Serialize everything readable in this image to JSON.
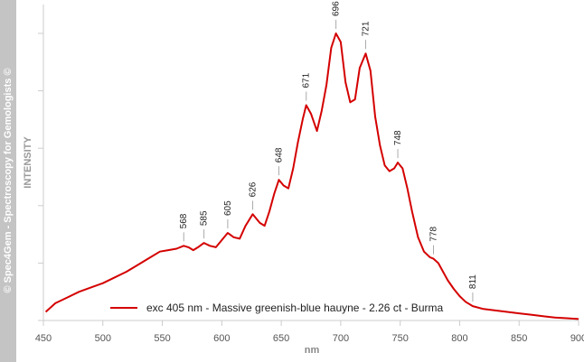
{
  "watermark": "© Spec4Gem - Spectroscopy for Gemologists ©",
  "chart_data": {
    "type": "line",
    "xlabel": "nm",
    "ylabel": "INTENSITY",
    "xlim": [
      450,
      900
    ],
    "ylim": [
      0,
      1.0
    ],
    "x_ticks": [
      450,
      500,
      550,
      600,
      650,
      700,
      750,
      800,
      850,
      900
    ],
    "y_tick_marks": [
      0,
      0.2,
      0.4,
      0.6,
      0.8,
      1.0
    ],
    "grid": false,
    "legend_position": "bottom",
    "colors": {
      "line": "#d40000",
      "axis": "#cccccc",
      "sidebar": "#c4c4c4"
    },
    "series": [
      {
        "name": "exc 405 nm - Massive greenish-blue hauyne - 2.26 ct - Burma",
        "x": [
          452,
          460,
          470,
          480,
          490,
          500,
          510,
          520,
          530,
          540,
          548,
          555,
          562,
          568,
          572,
          576,
          580,
          585,
          590,
          595,
          600,
          605,
          610,
          615,
          620,
          626,
          632,
          636,
          640,
          644,
          648,
          652,
          656,
          660,
          664,
          668,
          671,
          675,
          680,
          684,
          688,
          692,
          696,
          700,
          704,
          708,
          712,
          716,
          721,
          725,
          729,
          733,
          737,
          741,
          745,
          748,
          752,
          756,
          760,
          765,
          770,
          775,
          778,
          782,
          786,
          790,
          795,
          800,
          805,
          811,
          820,
          830,
          840,
          850,
          860,
          870,
          880,
          890,
          900
        ],
        "y": [
          0.03,
          0.06,
          0.08,
          0.1,
          0.115,
          0.13,
          0.15,
          0.17,
          0.195,
          0.22,
          0.24,
          0.245,
          0.25,
          0.26,
          0.255,
          0.245,
          0.255,
          0.27,
          0.26,
          0.255,
          0.28,
          0.305,
          0.29,
          0.285,
          0.33,
          0.37,
          0.34,
          0.33,
          0.38,
          0.44,
          0.49,
          0.47,
          0.46,
          0.53,
          0.62,
          0.7,
          0.75,
          0.72,
          0.66,
          0.73,
          0.82,
          0.95,
          1.0,
          0.97,
          0.83,
          0.76,
          0.77,
          0.88,
          0.93,
          0.87,
          0.71,
          0.61,
          0.54,
          0.52,
          0.53,
          0.55,
          0.53,
          0.46,
          0.38,
          0.29,
          0.24,
          0.22,
          0.215,
          0.2,
          0.17,
          0.14,
          0.11,
          0.085,
          0.065,
          0.05,
          0.04,
          0.035,
          0.03,
          0.025,
          0.02,
          0.015,
          0.01,
          0.008,
          0.005
        ]
      }
    ],
    "peaks": [
      {
        "label": "568",
        "x": 568,
        "y": 0.26
      },
      {
        "label": "585",
        "x": 585,
        "y": 0.27
      },
      {
        "label": "605",
        "x": 605,
        "y": 0.305
      },
      {
        "label": "626",
        "x": 626,
        "y": 0.37
      },
      {
        "label": "648",
        "x": 648,
        "y": 0.49
      },
      {
        "label": "671",
        "x": 671,
        "y": 0.75
      },
      {
        "label": "696",
        "x": 696,
        "y": 1.0
      },
      {
        "label": "721",
        "x": 721,
        "y": 0.93
      },
      {
        "label": "748",
        "x": 748,
        "y": 0.55
      },
      {
        "label": "778",
        "x": 778,
        "y": 0.215
      },
      {
        "label": "811",
        "x": 811,
        "y": 0.05
      }
    ]
  }
}
